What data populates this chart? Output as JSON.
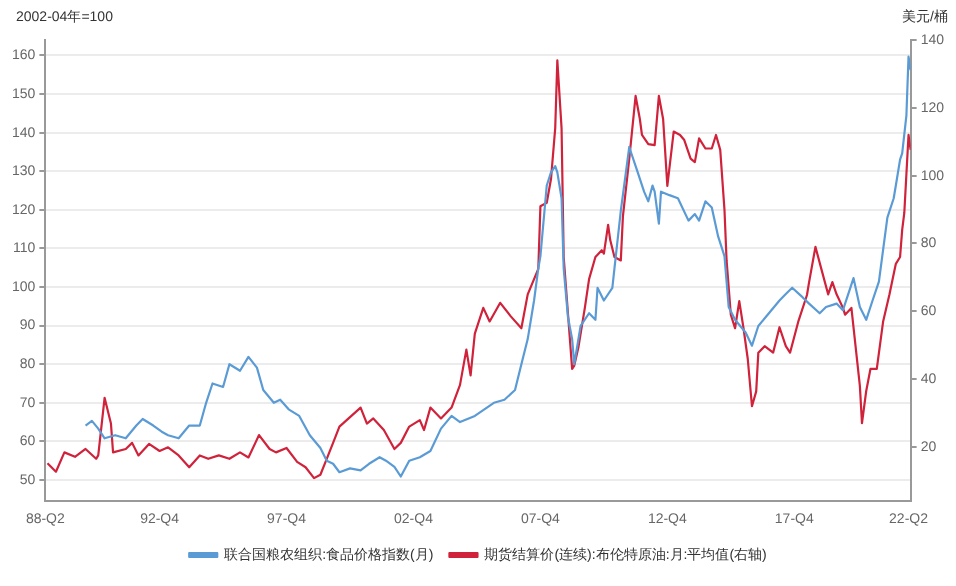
{
  "chart_data": {
    "type": "line",
    "ylabel": "2002-04年=100",
    "y2label": "美元/桶",
    "legend": "bottom",
    "grid": "y",
    "xlim": [
      "1988-04",
      "2022-05"
    ],
    "xticks": [
      {
        "value": "1988-04",
        "label": "88-Q2"
      },
      {
        "value": "1992-10",
        "label": "92-Q4"
      },
      {
        "value": "1997-10",
        "label": "97-Q4"
      },
      {
        "value": "2002-10",
        "label": "02-Q4"
      },
      {
        "value": "2007-10",
        "label": "07-Q4"
      },
      {
        "value": "2012-10",
        "label": "12-Q4"
      },
      {
        "value": "2017-10",
        "label": "17-Q4"
      },
      {
        "value": "2022-04",
        "label": "22-Q2"
      }
    ],
    "ylim": [
      44.5,
      164
    ],
    "yticks": [
      50,
      60,
      70,
      80,
      90,
      100,
      110,
      120,
      130,
      140,
      150,
      160
    ],
    "y2lim": [
      4,
      140
    ],
    "y2ticks": [
      20,
      40,
      60,
      80,
      100,
      120,
      140
    ],
    "series": [
      {
        "name": "联合国粮农组织:食品价格指数(月)",
        "color": "#5b9bd5",
        "axis": "y",
        "x": [
          "1989-11",
          "1990-02",
          "1990-05",
          "1990-08",
          "1991-01",
          "1991-06",
          "1991-11",
          "1992-02",
          "1992-07",
          "1992-11",
          "1993-02",
          "1993-07",
          "1993-12",
          "1994-05",
          "1994-08",
          "1994-11",
          "1995-04",
          "1995-07",
          "1995-12",
          "1996-04",
          "1996-08",
          "1996-11",
          "1997-04",
          "1997-07",
          "1997-11",
          "1998-04",
          "1998-09",
          "1999-02",
          "1999-05",
          "1999-08",
          "1999-11",
          "2000-04",
          "2000-09",
          "2001-01",
          "2001-06",
          "2001-09",
          "2002-01",
          "2002-04",
          "2002-08",
          "2003-01",
          "2003-06",
          "2003-11",
          "2004-04",
          "2004-08",
          "2005-03",
          "2005-12",
          "2006-05",
          "2006-10",
          "2007-01",
          "2007-04",
          "2007-07",
          "2007-09",
          "2007-10",
          "2008-01",
          "2008-03",
          "2008-05",
          "2008-06",
          "2008-08",
          "2008-09",
          "2008-11",
          "2009-01",
          "2009-02",
          "2009-05",
          "2009-09",
          "2009-12",
          "2010-01",
          "2010-04",
          "2010-08",
          "2010-09",
          "2010-12",
          "2011-04",
          "2011-05",
          "2011-08",
          "2011-11",
          "2012-01",
          "2012-03",
          "2012-04",
          "2012-06",
          "2012-07",
          "2012-11",
          "2013-03",
          "2013-08",
          "2013-11",
          "2014-01",
          "2014-04",
          "2014-07",
          "2014-10",
          "2015-01",
          "2015-03",
          "2015-06",
          "2015-11",
          "2016-02",
          "2016-05",
          "2016-10",
          "2017-03",
          "2017-06",
          "2017-09",
          "2018-02",
          "2018-05",
          "2018-10",
          "2019-01",
          "2019-06",
          "2019-09",
          "2020-02",
          "2020-05",
          "2020-08",
          "2020-11",
          "2021-02",
          "2021-06",
          "2021-09",
          "2021-10",
          "2021-12",
          "2022-01",
          "2022-03",
          "2022-04",
          "2022-05"
        ],
        "values": [
          64.1,
          65.3,
          63.3,
          60.8,
          61.6,
          60.8,
          64.1,
          65.8,
          64.1,
          62.5,
          61.6,
          60.8,
          64.1,
          64.1,
          70,
          75,
          74.1,
          80,
          78.3,
          81.9,
          79.1,
          73.3,
          70,
          70.8,
          68.3,
          66.6,
          61.6,
          58.3,
          55,
          54.2,
          52,
          53,
          52.5,
          54.2,
          55.9,
          55,
          53.4,
          50.9,
          55,
          55.9,
          57.5,
          63.3,
          66.6,
          65,
          66.6,
          70,
          70.8,
          73.3,
          80,
          86.5,
          96.5,
          104.8,
          108,
          126.3,
          129.7,
          131.3,
          129.7,
          123,
          104.8,
          92.3,
          86.5,
          80,
          89.9,
          93.2,
          91.5,
          99.8,
          96.5,
          99.8,
          104.8,
          119.7,
          136.3,
          134.6,
          129.7,
          124.7,
          122.2,
          126.3,
          124.7,
          116.4,
          124.7,
          123.8,
          123,
          117.2,
          118.9,
          117.2,
          122.2,
          120.6,
          113.1,
          108,
          94.8,
          91.5,
          88.2,
          84.8,
          89.9,
          93.2,
          96.5,
          98.2,
          99.8,
          97.3,
          95.7,
          93.2,
          94.8,
          95.7,
          94,
          102.3,
          94.8,
          91.5,
          96.5,
          101.4,
          118,
          123,
          126.3,
          133,
          134.6,
          144.5,
          159.7,
          156.2
        ]
      },
      {
        "name": "期货结算价(连续):布伦特原油:月:平均值(右轴)",
        "color": "#d0223a",
        "axis": "y2",
        "x": [
          "1988-05",
          "1988-09",
          "1989-01",
          "1989-06",
          "1989-11",
          "1990-04",
          "1990-05",
          "1990-08",
          "1990-11",
          "1990-12",
          "1991-06",
          "1991-09",
          "1991-12",
          "1992-05",
          "1992-10",
          "1993-02",
          "1993-07",
          "1993-12",
          "1994-05",
          "1994-09",
          "1995-02",
          "1995-07",
          "1995-12",
          "1996-04",
          "1996-09",
          "1997-02",
          "1997-05",
          "1997-10",
          "1998-03",
          "1998-07",
          "1998-11",
          "1999-02",
          "1999-05",
          "1999-08",
          "1999-11",
          "2000-04",
          "2000-09",
          "2000-12",
          "2001-03",
          "2001-08",
          "2002-01",
          "2002-04",
          "2002-08",
          "2003-01",
          "2003-03",
          "2003-06",
          "2003-11",
          "2004-04",
          "2004-08",
          "2004-11",
          "2005-01",
          "2005-03",
          "2005-07",
          "2005-10",
          "2006-03",
          "2006-08",
          "2007-01",
          "2007-04",
          "2007-09",
          "2007-10",
          "2008-01",
          "2008-03",
          "2008-05",
          "2008-06",
          "2008-08",
          "2008-09",
          "2009-01",
          "2009-02",
          "2009-04",
          "2009-07",
          "2009-09",
          "2009-12",
          "2010-03",
          "2010-04",
          "2010-06",
          "2010-07",
          "2010-09",
          "2010-12",
          "2011-01",
          "2011-04",
          "2011-07",
          "2011-09",
          "2011-10",
          "2012-01",
          "2012-04",
          "2012-06",
          "2012-08",
          "2012-10",
          "2013-01",
          "2013-04",
          "2013-06",
          "2013-09",
          "2013-11",
          "2014-01",
          "2014-04",
          "2014-07",
          "2014-09",
          "2014-11",
          "2015-01",
          "2015-02",
          "2015-04",
          "2015-06",
          "2015-08",
          "2015-10",
          "2015-12",
          "2016-02",
          "2016-04",
          "2016-05",
          "2016-08",
          "2016-12",
          "2017-03",
          "2017-06",
          "2017-08",
          "2017-12",
          "2018-04",
          "2018-05",
          "2018-08",
          "2018-11",
          "2019-02",
          "2019-04",
          "2019-06",
          "2019-09",
          "2019-10",
          "2020-01",
          "2020-05",
          "2020-06",
          "2020-08",
          "2020-10",
          "2021-01",
          "2021-04",
          "2021-07",
          "2021-10",
          "2021-12",
          "2022-01",
          "2022-02",
          "2022-04",
          "2022-05"
        ],
        "values": [
          15.2,
          12.7,
          18.4,
          17.1,
          19.4,
          16.5,
          17.5,
          34.5,
          26.9,
          18.4,
          19.4,
          21.2,
          17.5,
          20.9,
          18.8,
          19.9,
          17.5,
          14,
          17.5,
          16.5,
          17.5,
          16.5,
          18.4,
          16.9,
          23.5,
          19.4,
          18.4,
          19.7,
          15.6,
          14,
          10.8,
          11.8,
          16.5,
          21.2,
          26,
          28.8,
          31.6,
          26.9,
          28.4,
          25,
          19.4,
          21.2,
          26,
          27.9,
          25,
          31.6,
          28.4,
          31.6,
          38.3,
          48.7,
          41.1,
          53.4,
          61,
          57,
          62.5,
          58.5,
          55,
          65,
          72.5,
          91,
          92,
          99,
          114,
          134,
          114,
          76,
          43,
          44,
          49.5,
          61,
          69.5,
          76,
          78,
          77,
          85.5,
          81,
          76,
          75,
          88,
          105,
          123.5,
          116.7,
          112,
          109.3,
          109,
          123.5,
          116.7,
          97,
          113,
          112,
          110.5,
          105,
          104,
          111,
          108,
          108,
          112,
          107.6,
          90,
          75,
          59,
          55,
          63,
          55,
          46,
          32,
          36.4,
          47.8,
          49.7,
          47.8,
          55.3,
          49.7,
          47.8,
          57.2,
          64.8,
          68.6,
          79,
          72,
          65,
          68.6,
          65,
          61,
          59,
          61,
          38,
          27,
          36.5,
          43,
          43,
          57,
          65,
          74,
          76,
          84,
          89,
          112,
          107.6
        ]
      }
    ]
  }
}
